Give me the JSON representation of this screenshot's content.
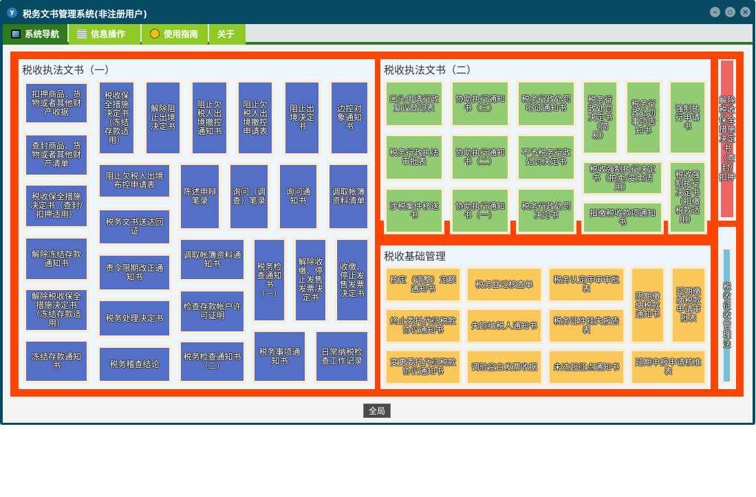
{
  "window": {
    "title": "税务文书管理系统(非注册用户)",
    "icon": "app-logo-icon",
    "controls": [
      "minimize-icon",
      "restore-icon",
      "close-icon"
    ]
  },
  "tabs": [
    {
      "label": "系统导航",
      "icon": "monitor-icon",
      "active": true
    },
    {
      "label": "信息操作",
      "icon": "grid-icon"
    },
    {
      "label": "使用指南",
      "icon": "help-icon"
    },
    {
      "label": "关于"
    }
  ],
  "colors": {
    "frame": "#ff4500",
    "blue": "#5470c6",
    "green": "#91cc75",
    "yellow": "#fac858",
    "red": "#ee6666",
    "lightblue": "#73c0de"
  },
  "sections": {
    "s1": {
      "title": "税收执法文书（一）",
      "tiles": [
        "扣押商品、货物或者其他财产收据",
        "查封商品、货物或者其他财产清单",
        "税收保全措施决定书（查封/扣押适用）",
        "解除冻结存款通知书",
        "解除税收保全措施决定书（冻结存款适用）",
        "冻结存款通知书",
        "税收保全措施决定书（冻结存款适用）",
        "解除阻止出境决定书",
        "阻止欠税人出境撤控通知书",
        "阻止欠税人出境撤控申请表",
        "阻止出境决定书",
        "边控对象通知书",
        "阻止欠税人出境布控申请表",
        "税务文书送达回证",
        "陈述申辩笔录",
        "询问（调查）笔录",
        "询问通知书",
        "调取帐簿资料清单",
        "责令限期改正通知书",
        "税务处理决定书",
        "税务稽查结论",
        "调取帐簿资料通知书",
        "检查存款帐户许可证明",
        "税务检查通知书（二）",
        "税务检查通知书（一）",
        "解除收缴、停止发售发票决定书",
        "收缴、停止发售发票决定书",
        "税务事项通知书",
        "日常纳税检查工作记录"
      ]
    },
    "s2": {
      "title": "税收执法文书（二）",
      "tiles": [
        "口头申请行政复议登记表",
        "协助执行通知书（三）",
        "税务行政处罚听证通知书",
        "税务行政处罚决定书（简易）",
        "税务行政处罚事项告知书",
        "强制执行申请书",
        "税务行政执法审批表",
        "协助执行通知书（二）",
        "不予税务行政处罚决定书",
        "税收强制执行决定书（拍卖/变卖适用）",
        "税收强制执行决定书（扣缴税款适用）",
        "涉税案件移送书",
        "协助执行通知书（一）",
        "税务行政处罚决定书",
        "扣缴税收款项通知书"
      ]
    },
    "s3": {
      "title": "税收基础管理",
      "tiles": [
        "核定（调整）定额通知书",
        "税务登记核查单",
        "税务认定年审审批表",
        "限期缴纳税款通知书",
        "延期缴纳税款申请审批表",
        "终止委托代征税款协议通知书",
        "失踪纳税人通知书",
        "税务证件挂失报告表",
        "变更委托代征税款协议通知书",
        "调验空白发票收据",
        "未达起征点通知书",
        "延期申报申请核准表"
      ]
    },
    "s4": {
      "tiles": [
        "解除税收保全措施决定书（查封/扣押"
      ]
    },
    "s5": {
      "tiles": [
        "税收征收管理法"
      ]
    }
  },
  "footer": {
    "button": "全局"
  }
}
